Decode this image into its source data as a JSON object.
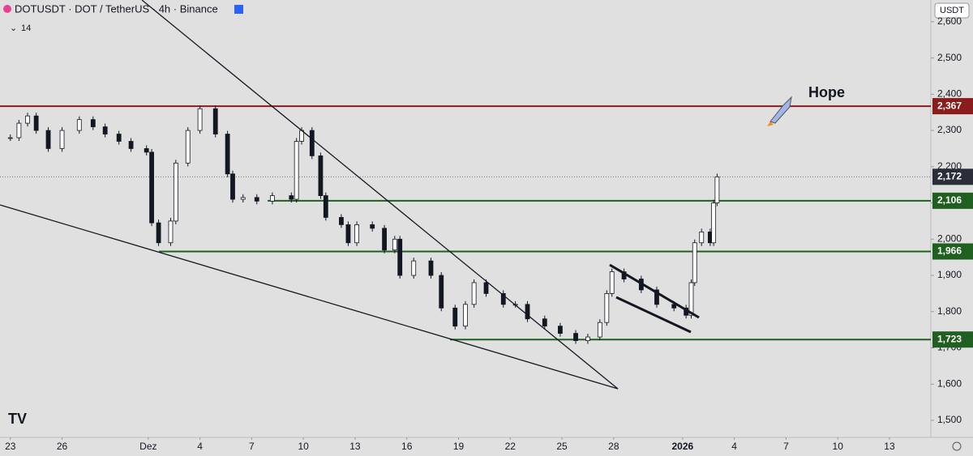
{
  "header": {
    "symbol": "DOTUSDT · DOT / TetherUS · 4h · Binance",
    "indicator": "14",
    "currency": "USDT"
  },
  "chart_data": {
    "type": "candlestick",
    "annotation": "Hope",
    "x": [
      0,
      0.5,
      1,
      1.5,
      2.2,
      3,
      4,
      4.8,
      5.5,
      6.3,
      7,
      7.9,
      8.2,
      8.6,
      9.3,
      9.6,
      10.3,
      11,
      11.9,
      12.6,
      12.9,
      13.5,
      14.3,
      15.2,
      16.3,
      16.6,
      16.9,
      17.5,
      18,
      18.3,
      19.2,
      19.6,
      20.1,
      21,
      21.7,
      22.3,
      22.6,
      23.4,
      24.4,
      25,
      25.8,
      26.4,
      26.9,
      27.6,
      28.6,
      29.3,
      30,
      31,
      31.9,
      32.8,
      33.5,
      34.2,
      34.6,
      34.9,
      35.6,
      36.6,
      37.5,
      38.5,
      39.2,
      39.5,
      39.7,
      40.1,
      40.6,
      40.8,
      41
    ],
    "close": [
      2280,
      2320,
      2340,
      2300,
      2250,
      2300,
      2330,
      2310,
      2290,
      2270,
      2250,
      2240,
      2045,
      1990,
      2050,
      2210,
      2300,
      2360,
      2290,
      2180,
      2110,
      2115,
      2105,
      2120,
      2110,
      2270,
      2300,
      2230,
      2120,
      2060,
      2040,
      1990,
      2040,
      2030,
      1970,
      2000,
      1900,
      1940,
      1900,
      1810,
      1760,
      1820,
      1880,
      1850,
      1820,
      1820,
      1780,
      1760,
      1740,
      1720,
      1730,
      1770,
      1850,
      1910,
      1890,
      1860,
      1820,
      1810,
      1790,
      1880,
      1990,
      2020,
      1990,
      2100,
      2172
    ],
    "up_color": "#ffffff",
    "down_color": "#131722",
    "ylim": [
      1453,
      2660
    ],
    "yticks": [
      {
        "value": 1500,
        "label": "1,500"
      },
      {
        "value": 1600,
        "label": "1,600"
      },
      {
        "value": 1700,
        "label": "1,700"
      },
      {
        "value": 1800,
        "label": "1,800"
      },
      {
        "value": 1900,
        "label": "1,900"
      },
      {
        "value": 2000,
        "label": "2,000"
      },
      {
        "value": 2100,
        "label": "2,100"
      },
      {
        "value": 2200,
        "label": "2,200"
      },
      {
        "value": 2300,
        "label": "2,300"
      },
      {
        "value": 2400,
        "label": "2,400"
      },
      {
        "value": 2500,
        "label": "2,500"
      },
      {
        "value": 2600,
        "label": "2,600"
      }
    ],
    "xlim": [
      -0.6,
      53.4
    ],
    "xticks": [
      {
        "value": 0,
        "label": "23"
      },
      {
        "value": 3,
        "label": "26"
      },
      {
        "value": 8,
        "label": "Dez"
      },
      {
        "value": 11,
        "label": "4"
      },
      {
        "value": 14,
        "label": "7"
      },
      {
        "value": 17,
        "label": "10"
      },
      {
        "value": 20,
        "label": "13"
      },
      {
        "value": 23,
        "label": "16"
      },
      {
        "value": 26,
        "label": "19"
      },
      {
        "value": 29,
        "label": "22"
      },
      {
        "value": 32,
        "label": "25"
      },
      {
        "value": 35,
        "label": "28"
      },
      {
        "value": 39,
        "label": "2026"
      },
      {
        "value": 42,
        "label": "4"
      },
      {
        "value": 45,
        "label": "7"
      },
      {
        "value": 48,
        "label": "10"
      },
      {
        "value": 51,
        "label": "13"
      }
    ],
    "levels": [
      {
        "value": 2367,
        "label": "2,367",
        "color": "#8b1c1c"
      },
      {
        "value": 2106,
        "label": "2,106",
        "color": "#1f5f1f"
      },
      {
        "value": 1966,
        "label": "1,966",
        "color": "#1f5f1f"
      },
      {
        "value": 1723,
        "label": "1,723",
        "color": "#1f5f1f"
      }
    ],
    "last_price": {
      "value": 2172,
      "label": "2,172",
      "color": "#2a2e39"
    }
  }
}
